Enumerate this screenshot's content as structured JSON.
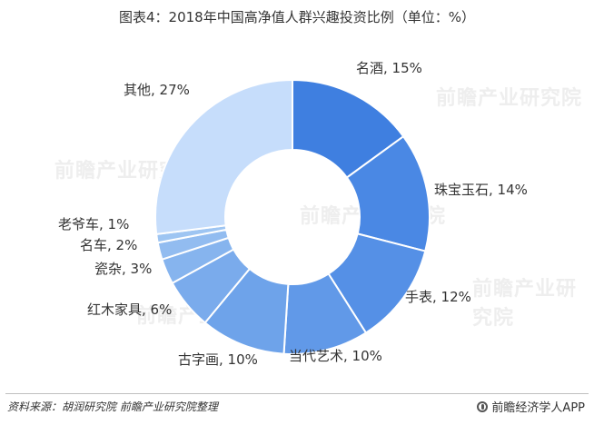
{
  "chart_data": {
    "type": "pie",
    "title": "图表4：2018年中国高净值人群兴趣投资比例（单位：%）",
    "categories": [
      "名酒",
      "珠宝玉石",
      "手表",
      "当代艺术",
      "古字画",
      "红木家具",
      "瓷杂",
      "名车",
      "老爷车",
      "其他"
    ],
    "values": [
      15,
      14,
      12,
      10,
      10,
      6,
      3,
      2,
      1,
      27
    ],
    "labels": [
      "名酒, 15%",
      "珠宝玉石, 14%",
      "手表, 12%",
      "当代艺术, 10%",
      "古字画, 10%",
      "红木家具, 6%",
      "瓷杂, 3%",
      "名车, 2%",
      "老爷车, 1%",
      "其他, 27%"
    ],
    "colors": [
      "#3f7fe0",
      "#4a88e4",
      "#5590e6",
      "#6199e8",
      "#6ea3ea",
      "#7aabec",
      "#86b4ee",
      "#92bcf0",
      "#9ec5f2",
      "#c6ddfb"
    ],
    "donut": true
  },
  "footer": {
    "source": "资料来源：胡润研究院 前瞻产业研究院整理",
    "brand": "前瞻经济学人APP"
  },
  "watermark": "前瞻产业研究院"
}
